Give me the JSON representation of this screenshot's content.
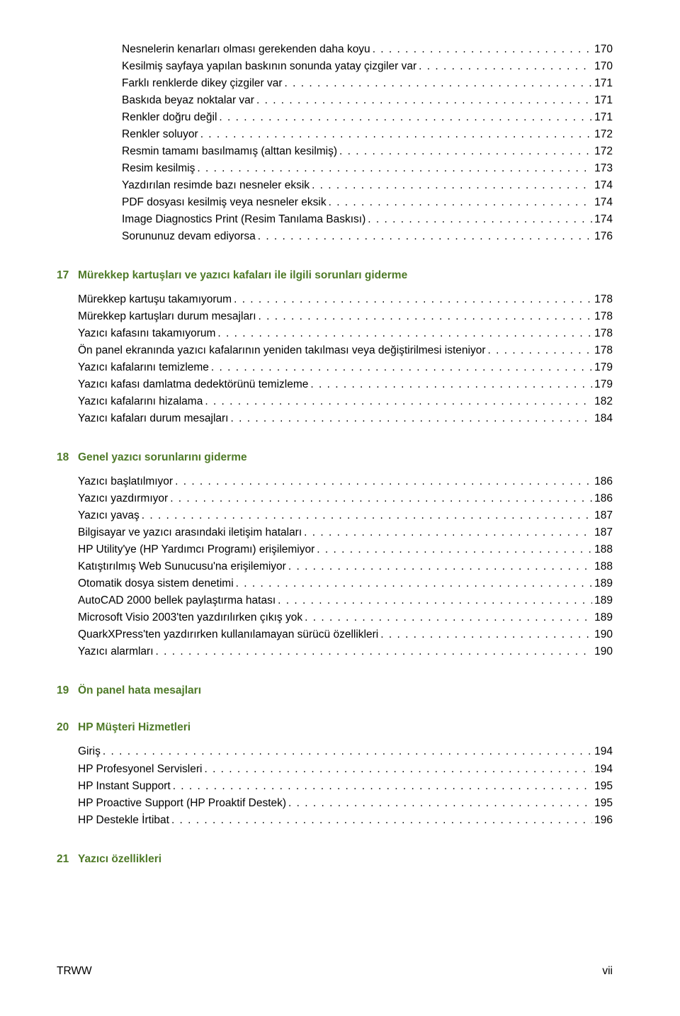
{
  "colors": {
    "heading": "#4f7a28",
    "text": "#000000",
    "background": "#ffffff"
  },
  "typography": {
    "body_fontsize_pt": 11.5,
    "heading_fontweight": "bold",
    "font_family": "Arial"
  },
  "sections": [
    {
      "num": null,
      "title": null,
      "lines": [
        {
          "label": "Nesnelerin kenarları olması gerekenden daha koyu",
          "page": "170",
          "indent": 2
        },
        {
          "label": "Kesilmiş sayfaya yapılan baskının sonunda yatay çizgiler var",
          "page": "170",
          "indent": 2
        },
        {
          "label": "Farklı renklerde dikey çizgiler var",
          "page": "171",
          "indent": 2
        },
        {
          "label": "Baskıda beyaz noktalar var",
          "page": "171",
          "indent": 2
        },
        {
          "label": "Renkler doğru değil",
          "page": "171",
          "indent": 2
        },
        {
          "label": "Renkler soluyor",
          "page": "172",
          "indent": 2
        },
        {
          "label": "Resmin tamamı basılmamış (alttan kesilmiş)",
          "page": "172",
          "indent": 2
        },
        {
          "label": "Resim kesilmiş",
          "page": "173",
          "indent": 2
        },
        {
          "label": "Yazdırılan resimde bazı nesneler eksik",
          "page": "174",
          "indent": 2
        },
        {
          "label": "PDF dosyası kesilmiş veya nesneler eksik",
          "page": "174",
          "indent": 2
        },
        {
          "label": "Image Diagnostics Print (Resim Tanılama Baskısı)",
          "page": "174",
          "indent": 2
        },
        {
          "label": "Sorununuz devam ediyorsa",
          "page": "176",
          "indent": 2
        }
      ]
    },
    {
      "num": "17",
      "title": "Mürekkep kartuşları ve yazıcı kafaları ile ilgili sorunları giderme",
      "lines": [
        {
          "label": "Mürekkep kartuşu takamıyorum",
          "page": "178",
          "indent": 1
        },
        {
          "label": "Mürekkep kartuşları durum mesajları",
          "page": "178",
          "indent": 1
        },
        {
          "label": "Yazıcı kafasını takamıyorum",
          "page": "178",
          "indent": 1
        },
        {
          "label": "Ön panel ekranında yazıcı kafalarının yeniden takılması veya değiştirilmesi isteniyor",
          "page": "178",
          "indent": 1
        },
        {
          "label": "Yazıcı kafalarını temizleme",
          "page": "179",
          "indent": 1
        },
        {
          "label": "Yazıcı kafası damlatma dedektörünü temizleme",
          "page": "179",
          "indent": 1
        },
        {
          "label": "Yazıcı kafalarını hizalama",
          "page": "182",
          "indent": 1
        },
        {
          "label": "Yazıcı kafaları durum mesajları",
          "page": "184",
          "indent": 1
        }
      ]
    },
    {
      "num": "18",
      "title": "Genel yazıcı sorunlarını giderme",
      "lines": [
        {
          "label": "Yazıcı başlatılmıyor",
          "page": "186",
          "indent": 1
        },
        {
          "label": "Yazıcı yazdırmıyor",
          "page": "186",
          "indent": 1
        },
        {
          "label": "Yazıcı yavaş",
          "page": "187",
          "indent": 1
        },
        {
          "label": "Bilgisayar ve yazıcı arasındaki iletişim hataları",
          "page": "187",
          "indent": 1
        },
        {
          "label": "HP Utility'ye (HP Yardımcı Programı) erişilemiyor",
          "page": "188",
          "indent": 1
        },
        {
          "label": "Katıştırılmış Web Sunucusu'na erişilemiyor",
          "page": "188",
          "indent": 1
        },
        {
          "label": "Otomatik dosya sistem denetimi",
          "page": "189",
          "indent": 1
        },
        {
          "label": "AutoCAD 2000 bellek paylaştırma hatası",
          "page": "189",
          "indent": 1
        },
        {
          "label": "Microsoft Visio 2003'ten yazdırılırken çıkış yok",
          "page": "189",
          "indent": 1
        },
        {
          "label": "QuarkXPress'ten yazdırırken kullanılamayan sürücü özellikleri",
          "page": "190",
          "indent": 1
        },
        {
          "label": "Yazıcı alarmları",
          "page": "190",
          "indent": 1
        }
      ]
    },
    {
      "num": "19",
      "title": "Ön panel hata mesajları",
      "lines": []
    },
    {
      "num": "20",
      "title": "HP Müşteri Hizmetleri",
      "lines": [
        {
          "label": "Giriş",
          "page": "194",
          "indent": 1
        },
        {
          "label": "HP Profesyonel Servisleri",
          "page": "194",
          "indent": 1
        },
        {
          "label": "HP Instant Support",
          "page": "195",
          "indent": 1
        },
        {
          "label": "HP Proactive Support (HP Proaktif Destek)",
          "page": "195",
          "indent": 1
        },
        {
          "label": "HP Destekle İrtibat",
          "page": "196",
          "indent": 1
        }
      ]
    },
    {
      "num": "21",
      "title": "Yazıcı özellikleri",
      "lines": []
    }
  ],
  "footer": {
    "left": "TRWW",
    "right": "vii"
  }
}
